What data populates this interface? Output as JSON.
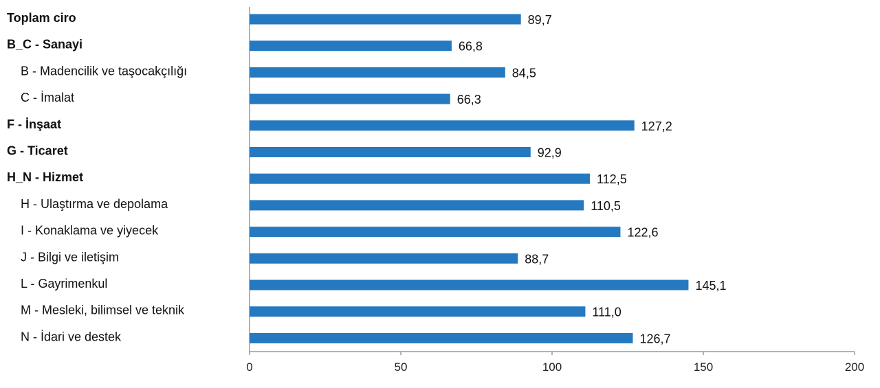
{
  "chart_data": {
    "type": "bar",
    "orientation": "horizontal",
    "title": "",
    "xlabel": "",
    "ylabel": "",
    "xlim": [
      0,
      200
    ],
    "xticks": [
      0,
      50,
      100,
      150,
      200
    ],
    "grid": false,
    "bar_color": "#2579c0",
    "categories": [
      {
        "label": "Toplam ciro",
        "bold": true,
        "indent": false
      },
      {
        "label": "B_C - Sanayi",
        "bold": true,
        "indent": false
      },
      {
        "label": "B - Madencilik ve taşocakçılığı",
        "bold": false,
        "indent": true
      },
      {
        "label": "C - İmalat",
        "bold": false,
        "indent": true
      },
      {
        "label": "F - İnşaat",
        "bold": true,
        "indent": false
      },
      {
        "label": "G - Ticaret",
        "bold": true,
        "indent": false
      },
      {
        "label": "H_N - Hizmet",
        "bold": true,
        "indent": false
      },
      {
        "label": "H - Ulaştırma ve depolama",
        "bold": false,
        "indent": true
      },
      {
        "label": " I - Konaklama ve yiyecek",
        "bold": false,
        "indent": true
      },
      {
        "label": "J - Bilgi ve iletişim",
        "bold": false,
        "indent": true
      },
      {
        "label": "L - Gayrimenkul",
        "bold": false,
        "indent": true
      },
      {
        "label": "M - Mesleki, bilimsel ve teknik",
        "bold": false,
        "indent": true
      },
      {
        "label": "N - İdari ve destek",
        "bold": false,
        "indent": true
      }
    ],
    "values": [
      89.7,
      66.8,
      84.5,
      66.3,
      127.2,
      92.9,
      112.5,
      110.5,
      122.6,
      88.7,
      145.1,
      111.0,
      126.7
    ],
    "value_labels": [
      "89,7",
      "66,8",
      "84,5",
      "66,3",
      "127,2",
      "92,9",
      "112,5",
      "110,5",
      "122,6",
      "88,7",
      "145,1",
      "111,0",
      "126,7"
    ]
  }
}
